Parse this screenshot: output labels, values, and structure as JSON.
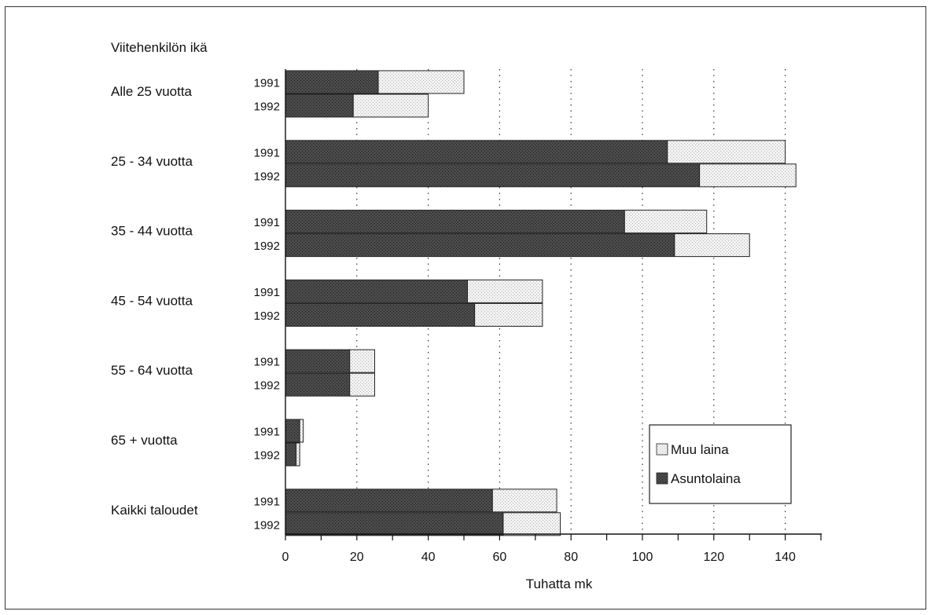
{
  "chart_data": {
    "type": "bar",
    "orientation": "horizontal",
    "stacked": true,
    "title": "Viitehenkilön ikä",
    "xlabel": "Tuhatta mk",
    "xlim": [
      0,
      150
    ],
    "xticks": [
      0,
      20,
      40,
      60,
      80,
      100,
      120,
      140
    ],
    "grid": "vertical dotted",
    "legend_position": "bottom-right",
    "categories": [
      {
        "label": "Alle 25 vuotta",
        "years": [
          "1991",
          "1992"
        ]
      },
      {
        "label": "25 - 34 vuotta",
        "years": [
          "1991",
          "1992"
        ]
      },
      {
        "label": "35 - 44 vuotta",
        "years": [
          "1991",
          "1992"
        ]
      },
      {
        "label": "45 - 54 vuotta",
        "years": [
          "1991",
          "1992"
        ]
      },
      {
        "label": "55 - 64 vuotta",
        "years": [
          "1991",
          "1992"
        ]
      },
      {
        "label": "65 + vuotta",
        "years": [
          "1991",
          "1992"
        ]
      },
      {
        "label": "Kaikki taloudet",
        "years": [
          "1991",
          "1992"
        ]
      }
    ],
    "series": [
      {
        "name": "Asuntolaina",
        "color": "#3a3a3a",
        "values": [
          [
            26,
            19
          ],
          [
            107,
            116
          ],
          [
            95,
            109
          ],
          [
            51,
            53
          ],
          [
            18,
            18
          ],
          [
            4,
            3
          ],
          [
            58,
            61
          ]
        ]
      },
      {
        "name": "Muu laina",
        "color": "#e6e6e6",
        "values": [
          [
            24,
            21
          ],
          [
            33,
            27
          ],
          [
            23,
            21
          ],
          [
            21,
            19
          ],
          [
            7,
            7
          ],
          [
            1,
            1
          ],
          [
            18,
            16
          ]
        ]
      }
    ]
  }
}
